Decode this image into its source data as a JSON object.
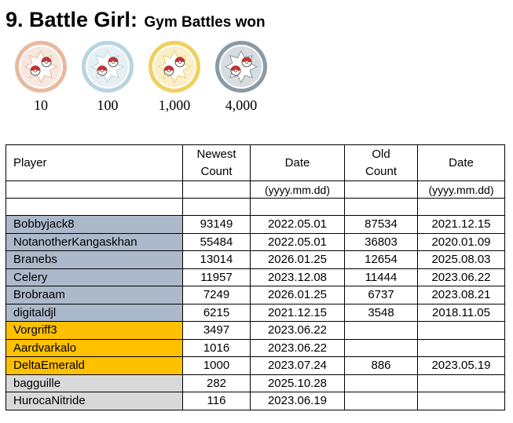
{
  "heading": {
    "number_title": "9. Battle Girl:",
    "subtitle": "Gym Battles won"
  },
  "tiers": [
    {
      "label": "10",
      "medal": "bronze-medal-icon",
      "color": "#e8b9a0"
    },
    {
      "label": "100",
      "medal": "silver-medal-icon",
      "color": "#b8d4e0"
    },
    {
      "label": "1,000",
      "medal": "gold-medal-icon",
      "color": "#f0d060"
    },
    {
      "label": "4,000",
      "medal": "platinum-medal-icon",
      "color": "#8a9ba5"
    }
  ],
  "table": {
    "headers": {
      "player": "Player",
      "newest_count_line1": "Newest",
      "newest_count_line2": "Count",
      "date1": "Date",
      "old_count_line1": "Old",
      "old_count_line2": "Count",
      "date2": "Date"
    },
    "date_format": "(yyyy.mm.dd)",
    "group_colors": {
      "blue": "#acb9ca",
      "orange": "#ffc000",
      "gray": "#d9d9d9"
    },
    "rows": [
      {
        "player": "Bobbyjack8",
        "newest": "93149",
        "date": "2022.05.01",
        "old": "87534",
        "old_date": "2021.12.15",
        "group": "blue"
      },
      {
        "player": "NotanotherKangaskhan",
        "newest": "55484",
        "date": "2022.05.01",
        "old": "36803",
        "old_date": "2020.01.09",
        "group": "blue"
      },
      {
        "player": "Branebs",
        "newest": "13014",
        "date": "2026.01.25",
        "old": "12654",
        "old_date": "2025.08.03",
        "group": "blue"
      },
      {
        "player": "Celery",
        "newest": "11957",
        "date": "2023.12.08",
        "old": "11444",
        "old_date": "2023.06.22",
        "group": "blue"
      },
      {
        "player": "Brobraam",
        "newest": "7249",
        "date": "2026.01.25",
        "old": "6737",
        "old_date": "2023.08.21",
        "group": "blue"
      },
      {
        "player": "digitaldjl",
        "newest": "6215",
        "date": "2021.12.15",
        "old": "3548",
        "old_date": "2018.11.05",
        "group": "blue"
      },
      {
        "player": "Vorgriff3",
        "newest": "3497",
        "date": "2023.06.22",
        "old": "",
        "old_date": "",
        "group": "orange"
      },
      {
        "player": "Aardvarkalo",
        "newest": "1016",
        "date": "2023.06.22",
        "old": "",
        "old_date": "",
        "group": "orange"
      },
      {
        "player": "DeltaEmerald",
        "newest": "1000",
        "date": "2023.07.24",
        "old": "886",
        "old_date": "2023.05.19",
        "group": "orange"
      },
      {
        "player": "bagguille",
        "newest": "282",
        "date": "2025.10.28",
        "old": "",
        "old_date": "",
        "group": "gray"
      },
      {
        "player": "HurocaNitride",
        "newest": "116",
        "date": "2023.06.19",
        "old": "",
        "old_date": "",
        "group": "gray"
      }
    ]
  }
}
